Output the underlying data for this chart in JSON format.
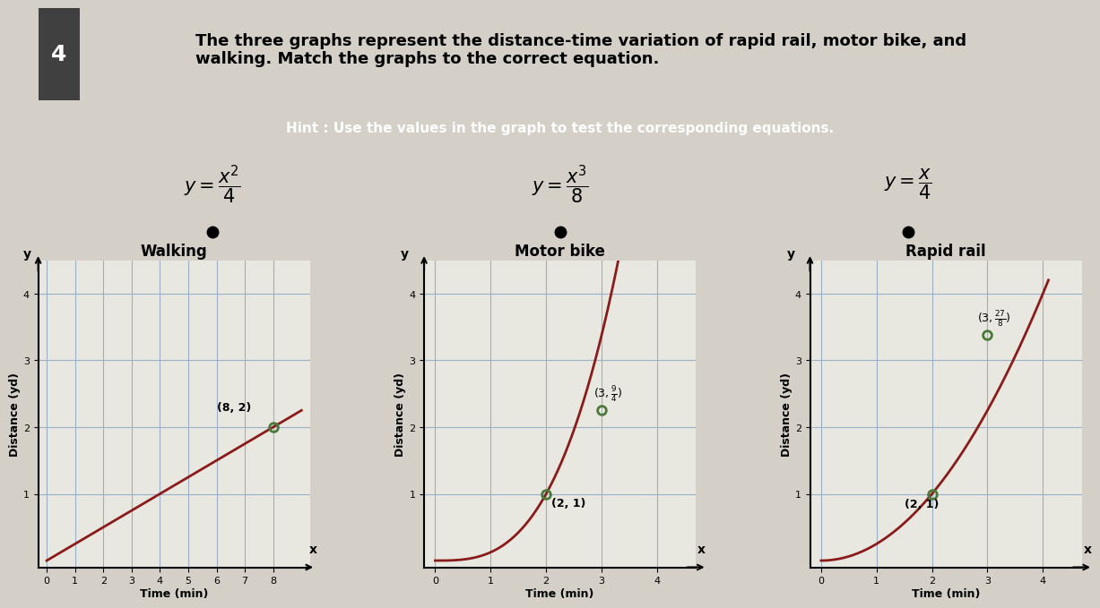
{
  "title": "The three graphs represent the distance-time variation of rapid rail, motor bike, and\nwalking. Match the graphs to the correct equation.",
  "hint": "Hint : Use the values in the graph to test the corresponding equations.",
  "bg_color": "#d4d0c8",
  "plot_bg": "#e8e8e0",
  "grid_color": "#9ab0c8",
  "line_color": "#8b1a1a",
  "point_color": "#4a7a3a",
  "hint_bg": "#7878a0",
  "title_box_bg": "white",
  "number_box_bg": "#404040",
  "walking_xticks": [
    0,
    1,
    2,
    3,
    4,
    5,
    6,
    7,
    8
  ],
  "walking_yticks": [
    1,
    2,
    3,
    4
  ],
  "walking_point": [
    8,
    2
  ],
  "motor_xticks": [
    0,
    1,
    2,
    3,
    4
  ],
  "motor_yticks": [
    1,
    2,
    3,
    4
  ],
  "motor_points": [
    [
      2,
      1
    ],
    [
      3,
      2.25
    ]
  ],
  "rapid_xticks": [
    0,
    1,
    2,
    3,
    4
  ],
  "rapid_yticks": [
    1,
    2,
    3,
    4
  ],
  "rapid_points": [
    [
      2,
      1
    ],
    [
      3,
      3.375
    ]
  ]
}
